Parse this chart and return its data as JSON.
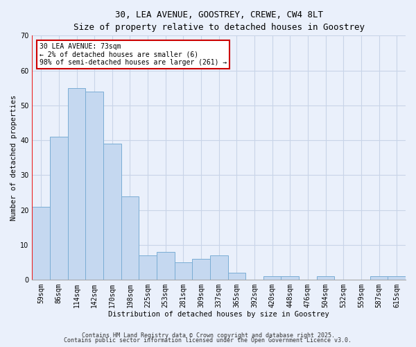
{
  "title1": "30, LEA AVENUE, GOOSTREY, CREWE, CW4 8LT",
  "title2": "Size of property relative to detached houses in Goostrey",
  "xlabel": "Distribution of detached houses by size in Goostrey",
  "ylabel": "Number of detached properties",
  "categories": [
    "59sqm",
    "86sqm",
    "114sqm",
    "142sqm",
    "170sqm",
    "198sqm",
    "225sqm",
    "253sqm",
    "281sqm",
    "309sqm",
    "337sqm",
    "365sqm",
    "392sqm",
    "420sqm",
    "448sqm",
    "476sqm",
    "504sqm",
    "532sqm",
    "559sqm",
    "587sqm",
    "615sqm"
  ],
  "values": [
    21,
    41,
    55,
    54,
    39,
    24,
    7,
    8,
    5,
    6,
    7,
    2,
    0,
    1,
    1,
    0,
    1,
    0,
    0,
    1,
    1
  ],
  "bar_color": "#c5d8f0",
  "bar_edge_color": "#7aadd4",
  "grid_color": "#c8d4e8",
  "bg_color": "#eaf0fb",
  "annotation_text": "30 LEA AVENUE: 73sqm\n← 2% of detached houses are smaller (6)\n98% of semi-detached houses are larger (261) →",
  "annotation_box_color": "#ffffff",
  "annotation_border_color": "#cc0000",
  "footer1": "Contains HM Land Registry data © Crown copyright and database right 2025.",
  "footer2": "Contains public sector information licensed under the Open Government Licence v3.0.",
  "ylim": [
    0,
    70
  ],
  "yticks": [
    0,
    10,
    20,
    30,
    40,
    50,
    60,
    70
  ]
}
